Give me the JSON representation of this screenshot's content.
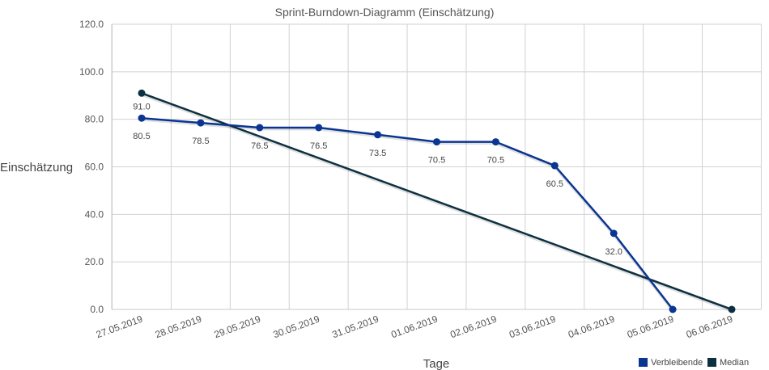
{
  "chart_data": {
    "type": "line",
    "title": "Sprint-Burndown-Diagramm (Einschätzung)",
    "xlabel": "Tage",
    "ylabel": "Einschätzung",
    "categories": [
      "27.05.2019",
      "28.05.2019",
      "29.05.2019",
      "30.05.2019",
      "31.05.2019",
      "01.06.2019",
      "02.06.2019",
      "03.06.2019",
      "04.06.2019",
      "05.06.2019",
      "06.06.2019"
    ],
    "y_ticks": [
      "0.0",
      "20.0",
      "40.0",
      "60.0",
      "80.0",
      "100.0",
      "120.0"
    ],
    "ylim": [
      0,
      120
    ],
    "grid": true,
    "legend_position": "bottom-right",
    "series": [
      {
        "name": "Verbleibende",
        "color": "#0a3591",
        "values": [
          80.5,
          78.5,
          76.5,
          76.5,
          73.5,
          70.5,
          70.5,
          60.5,
          32.0,
          0.0,
          null
        ],
        "labels": [
          "80.5",
          "78.5",
          "76.5",
          "76.5",
          "73.5",
          "70.5",
          "70.5",
          "60.5",
          "32.0",
          "",
          ""
        ]
      },
      {
        "name": "Median",
        "color": "#0c3040",
        "values": [
          91.0,
          null,
          null,
          null,
          null,
          null,
          null,
          null,
          null,
          null,
          0.0
        ],
        "labels": [
          "91.0",
          "",
          "",
          "",
          "",
          "",
          "",
          "",
          "",
          "",
          ""
        ]
      }
    ]
  }
}
